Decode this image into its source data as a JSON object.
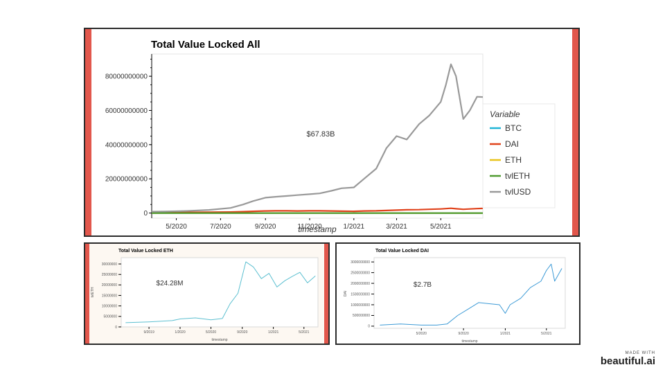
{
  "charts": [
    {
      "id": "all",
      "title": "Total Value Locked All",
      "xlabel": "timestamp",
      "ylabel": "",
      "annotation": "$67.83B",
      "legend_title": "Variable",
      "xticks": [
        "5/2020",
        "7/2020",
        "9/2020",
        "11/2020",
        "1/2021",
        "3/2021",
        "5/2021"
      ],
      "yticks": [
        "0",
        "20000000000",
        "40000000000",
        "60000000000",
        "80000000000"
      ]
    },
    {
      "id": "eth",
      "title": "Total Value Locked ETH",
      "xlabel": "timestamp",
      "ylabel": "tvlETH",
      "annotation": "$24.28M",
      "xticks": [
        "9/2019",
        "1/2020",
        "5/2020",
        "9/2020",
        "1/2021",
        "5/2021"
      ],
      "yticks": [
        "0",
        "5000000",
        "10000000",
        "15000000",
        "20000000",
        "25000000",
        "30000000"
      ]
    },
    {
      "id": "dai",
      "title": "Total Value Locked DAI",
      "xlabel": "timestamp",
      "ylabel": "DAI",
      "annotation": "$2.7B",
      "xticks": [
        "5/2020",
        "9/2020",
        "1/2021",
        "5/2021"
      ],
      "yticks": [
        "0",
        "500000000",
        "1000000000",
        "1500000000",
        "2000000000",
        "2500000000",
        "3000000000"
      ]
    }
  ],
  "chart_data": [
    {
      "type": "line",
      "title": "Total Value Locked All",
      "xlabel": "timestamp",
      "ylabel": "",
      "x": [
        "2020-03-15",
        "2020-04-15",
        "2020-05-15",
        "2020-06-15",
        "2020-07-15",
        "2020-08-01",
        "2020-08-15",
        "2020-09-01",
        "2020-09-15",
        "2020-10-01",
        "2020-10-15",
        "2020-11-01",
        "2020-11-15",
        "2020-12-01",
        "2020-12-15",
        "2021-01-01",
        "2021-01-15",
        "2021-02-01",
        "2021-02-15",
        "2021-03-01",
        "2021-03-15",
        "2021-04-01",
        "2021-04-15",
        "2021-05-01",
        "2021-05-08",
        "2021-05-15",
        "2021-05-22",
        "2021-06-01",
        "2021-06-10",
        "2021-06-20",
        "2021-06-28"
      ],
      "series": [
        {
          "name": "BTC",
          "color": "#1fb5d6",
          "values": [
            0,
            0,
            0,
            0,
            0,
            0,
            0,
            0,
            0,
            0,
            0,
            0,
            0,
            0,
            0,
            0,
            0,
            0,
            0,
            0,
            0,
            0,
            0,
            0,
            0,
            0,
            0,
            0,
            0,
            0,
            0
          ]
        },
        {
          "name": "DAI",
          "color": "#e0421b",
          "values": [
            500000000.0,
            500000000.0,
            400000000.0,
            500000000.0,
            600000000.0,
            800000000.0,
            1000000000.0,
            1200000000.0,
            1300000000.0,
            1300000000.0,
            1200000000.0,
            1300000000.0,
            1300000000.0,
            1200000000.0,
            1100000000.0,
            1000000000.0,
            1200000000.0,
            1300000000.0,
            1500000000.0,
            1700000000.0,
            1900000000.0,
            2000000000.0,
            2200000000.0,
            2400000000.0,
            2600000000.0,
            2800000000.0,
            2500000000.0,
            2200000000.0,
            2400000000.0,
            2600000000.0,
            2700000000.0
          ]
        },
        {
          "name": "ETH",
          "color": "#e8c31a",
          "values": [
            0,
            0,
            0,
            0,
            0,
            0,
            0,
            0,
            0,
            0,
            0,
            0,
            0,
            0,
            0,
            0,
            0,
            0,
            0,
            0,
            0,
            0,
            0,
            0,
            0,
            0,
            0,
            0,
            0,
            0,
            0
          ]
        },
        {
          "name": "tvlETH",
          "color": "#4f9a2e",
          "values": [
            0,
            0,
            0,
            0,
            0,
            0,
            0,
            0,
            0,
            0,
            0,
            0,
            0,
            0,
            0,
            0,
            0,
            0,
            0,
            0,
            0,
            0,
            0,
            0,
            0,
            0,
            0,
            0,
            0,
            0,
            0
          ]
        },
        {
          "name": "tvlUSD",
          "color": "#999999",
          "values": [
            800000000.0,
            900000000.0,
            1200000000.0,
            1800000000.0,
            3000000000.0,
            5000000000.0,
            7000000000.0,
            9000000000.0,
            9500000000.0,
            10000000000.0,
            10500000000.0,
            11000000000.0,
            11500000000.0,
            13000000000.0,
            14500000000.0,
            15000000000.0,
            20000000000.0,
            26000000000.0,
            38000000000.0,
            45000000000.0,
            43000000000.0,
            52000000000.0,
            57000000000.0,
            65000000000.0,
            75000000000.0,
            87000000000.0,
            80000000000.0,
            55000000000.0,
            60000000000.0,
            68000000000.0,
            67830000000.0
          ]
        }
      ],
      "ylim": [
        -3000000000,
        93000000000
      ],
      "legend": "right",
      "grid": false
    },
    {
      "type": "line",
      "title": "Total Value Locked ETH",
      "xlabel": "timestamp",
      "ylabel": "tvlETH",
      "x": [
        "2019-06-01",
        "2019-09-01",
        "2019-12-01",
        "2020-01-01",
        "2020-03-01",
        "2020-05-01",
        "2020-06-15",
        "2020-07-15",
        "2020-08-15",
        "2020-09-15",
        "2020-10-15",
        "2020-11-15",
        "2020-12-15",
        "2021-01-15",
        "2021-02-15",
        "2021-03-15",
        "2021-04-15",
        "2021-05-15",
        "2021-06-15"
      ],
      "series": [
        {
          "name": "tvlETH",
          "color": "#5bbfd0",
          "values": [
            2000000.0,
            2400000.0,
            3000000.0,
            3800000.0,
            4300000.0,
            3400000.0,
            4000000.0,
            11000000.0,
            16000000.0,
            31000000.0,
            28500000.0,
            23000000.0,
            25500000.0,
            19000000.0,
            22000000.0,
            24000000.0,
            26000000.0,
            21000000.0,
            24280000.0
          ]
        }
      ],
      "ylim": [
        0,
        33000000
      ],
      "grid": false
    },
    {
      "type": "line",
      "title": "Total Value Locked DAI",
      "xlabel": "timestamp",
      "ylabel": "DAI",
      "x": [
        "2020-01-01",
        "2020-03-01",
        "2020-05-01",
        "2020-06-15",
        "2020-07-15",
        "2020-08-15",
        "2020-09-15",
        "2020-10-15",
        "2020-11-15",
        "2020-12-15",
        "2021-01-01",
        "2021-01-15",
        "2021-02-15",
        "2021-03-15",
        "2021-04-15",
        "2021-05-01",
        "2021-05-15",
        "2021-05-25",
        "2021-06-15"
      ],
      "series": [
        {
          "name": "DAI",
          "color": "#3c9ad6",
          "values": [
            50000000.0,
            100000000.0,
            50000000.0,
            50000000.0,
            100000000.0,
            500000000.0,
            800000000.0,
            1100000000.0,
            1050000000.0,
            1000000000.0,
            600000000.0,
            1000000000.0,
            1300000000.0,
            1800000000.0,
            2100000000.0,
            2600000000.0,
            2900000000.0,
            2100000000.0,
            2700000000.0
          ]
        }
      ],
      "ylim": [
        -100000000,
        3200000000
      ],
      "grid": false
    }
  ]
}
